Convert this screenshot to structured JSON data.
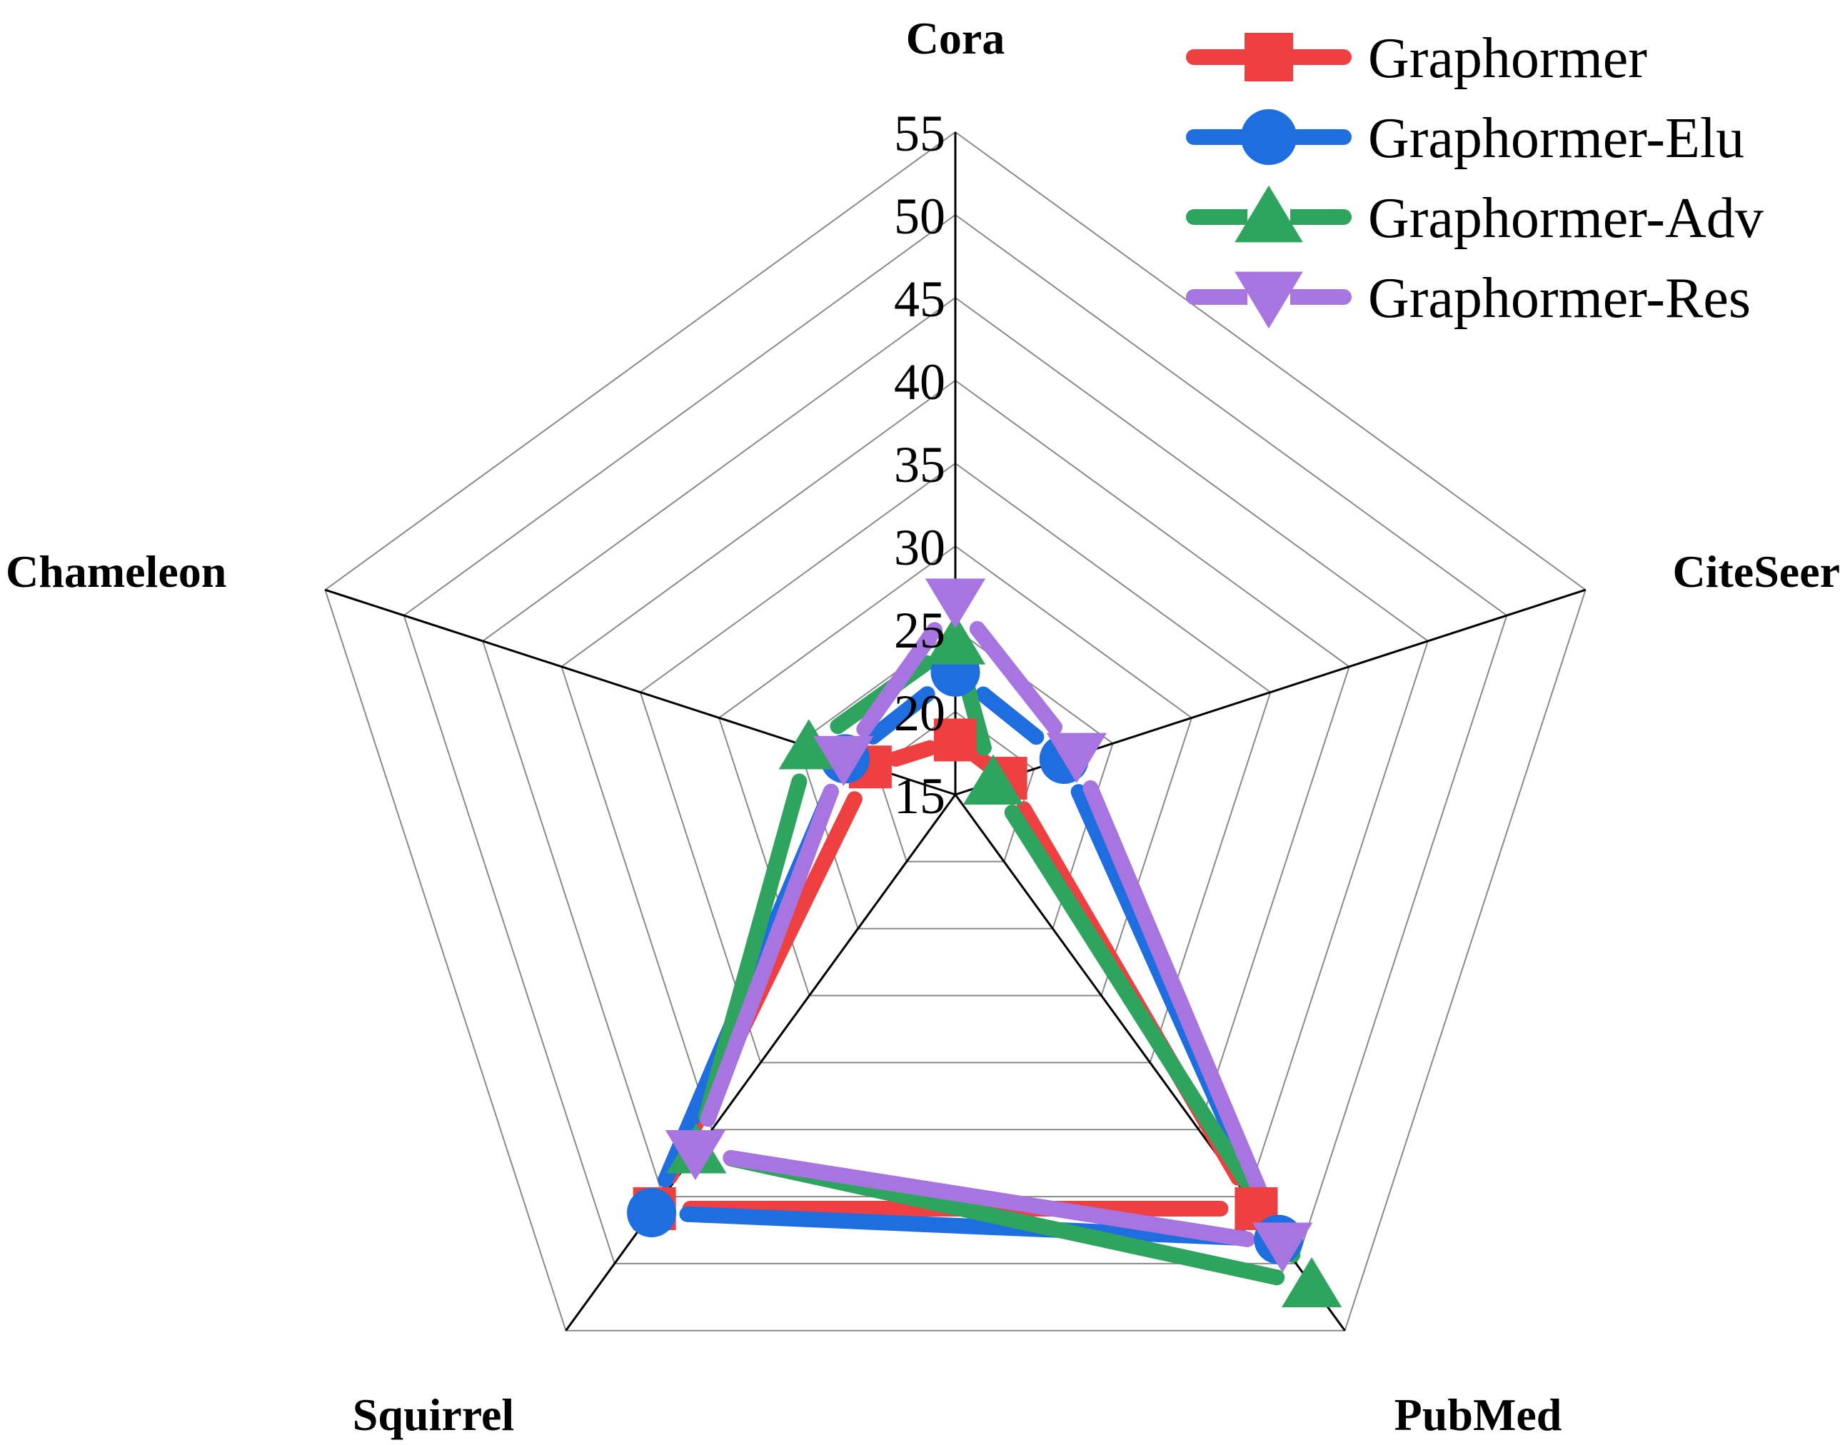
{
  "chart_data": {
    "type": "radar",
    "title": "",
    "axes": [
      "Cora",
      "CiteSeer",
      "PubMed",
      "Squirrel",
      "Chameleon"
    ],
    "range": [
      15,
      55
    ],
    "ticks": [
      15,
      20,
      25,
      30,
      35,
      40,
      45,
      50,
      55
    ],
    "tick_labels": [
      "15",
      "20",
      "25",
      "30",
      "35",
      "40",
      "45",
      "50",
      "55"
    ],
    "grid": true,
    "legend_position": "top-right",
    "series": [
      {
        "name": "Graphormer",
        "color": "#ee4040",
        "marker": "square",
        "values": [
          18.3,
          18.2,
          45.9,
          45.9,
          20.4
        ]
      },
      {
        "name": "Graphormer-Elu",
        "color": "#1f6ee0",
        "marker": "circle",
        "values": [
          22.4,
          21.9,
          48.2,
          46.2,
          22.0
        ]
      },
      {
        "name": "Graphormer-Adv",
        "color": "#2fa45f",
        "marker": "triangle-up",
        "values": [
          24.2,
          17.4,
          51.6,
          41.6,
          24.3
        ]
      },
      {
        "name": "Graphormer-Res",
        "color": "#a875e0",
        "marker": "triangle-down",
        "values": [
          26.7,
          22.7,
          48.6,
          41.7,
          22.1
        ]
      }
    ]
  }
}
